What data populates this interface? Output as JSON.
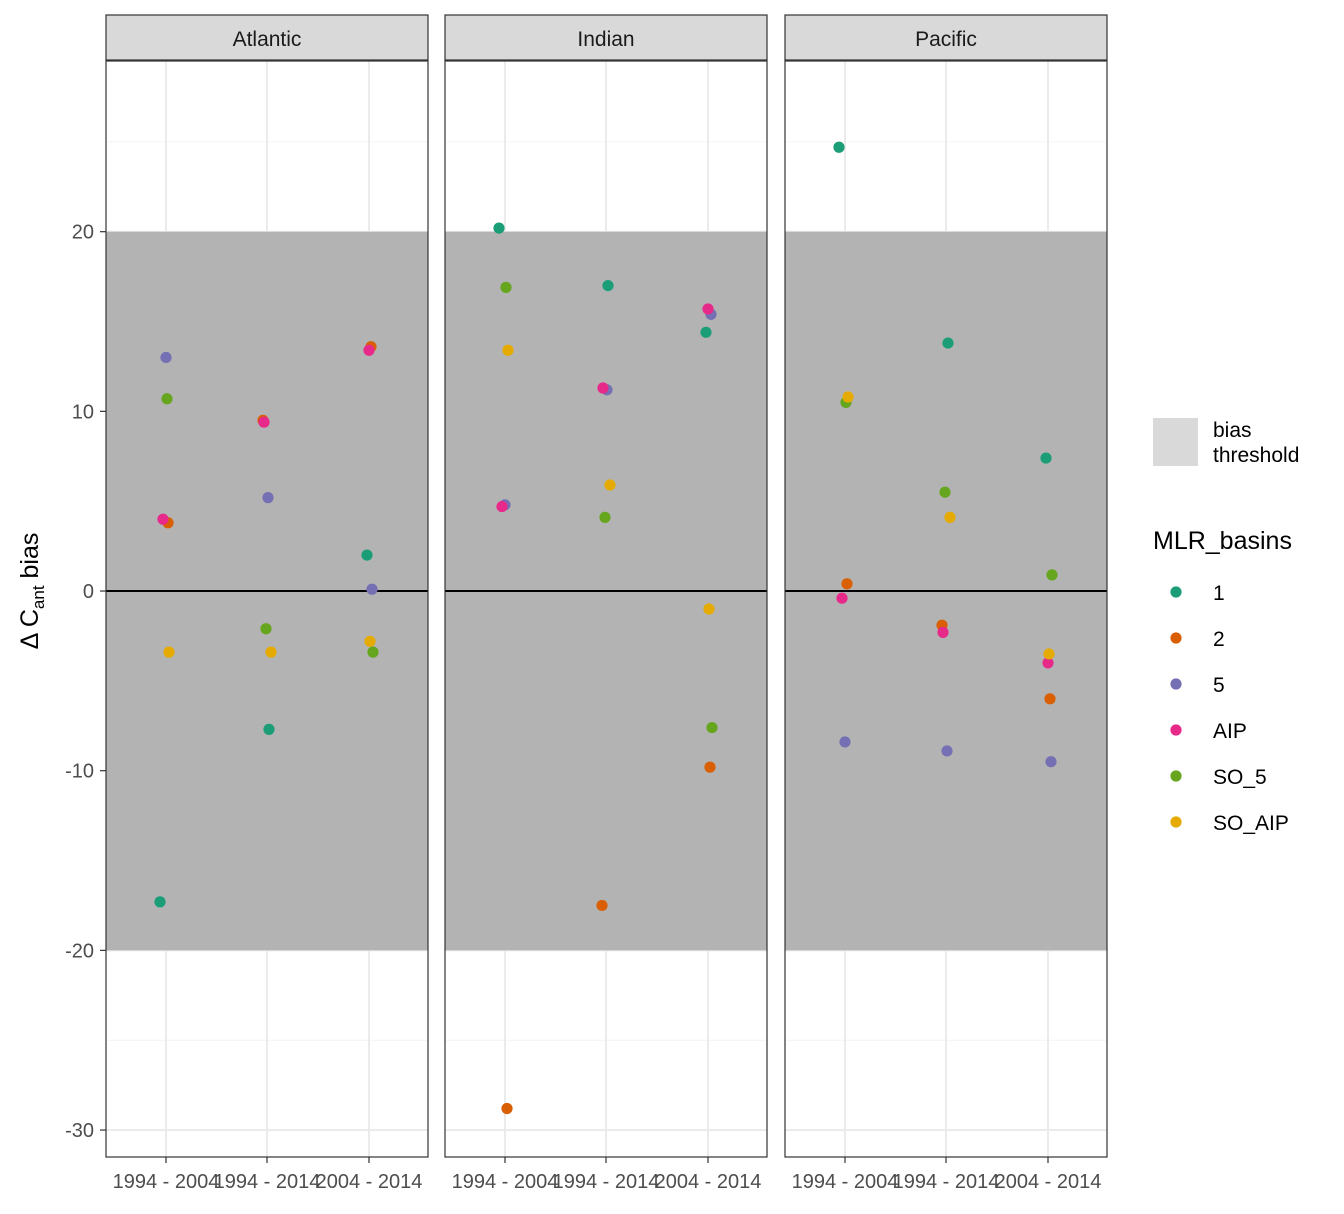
{
  "chart_data": {
    "type": "scatter",
    "facets": [
      "Atlantic",
      "Indian",
      "Pacific"
    ],
    "categories": [
      "1994 - 2004",
      "1994 - 2014",
      "2004 - 2014"
    ],
    "ylabel": {
      "main": "Δ C",
      "sub": "ant",
      "suffix": " bias"
    },
    "ylim": [
      -31.5,
      29.5
    ],
    "yticks": [
      -30,
      -20,
      -10,
      0,
      10,
      20
    ],
    "grid": true,
    "bias_threshold": [
      -20,
      20
    ],
    "zero_line": 0,
    "legend": {
      "fill_label_line1": "bias",
      "fill_label_line2": "threshold",
      "title": "MLR_basins",
      "placement": "right"
    },
    "colors": {
      "1": "#1b9e77",
      "2": "#d95f02",
      "5": "#7570b3",
      "AIP": "#e7298a",
      "SO_5": "#66a61e",
      "SO_AIP": "#e6ab02",
      "threshold_band": "#b3b3b3",
      "legend_fill": "#d9d9d9",
      "strip": "#d9d9d9"
    },
    "series": [
      {
        "name": "1",
        "points": {
          "Atlantic": [
            null,
            -7.7,
            2.0
          ],
          "Indian": [
            20.2,
            17.0,
            14.4
          ],
          "Pacific": [
            24.7,
            13.8,
            7.4
          ]
        },
        "Atlantic_first": -17.3
      },
      {
        "name": "2",
        "points": {
          "Atlantic": [
            3.8,
            9.5,
            13.6
          ],
          "Indian": [
            -28.8,
            -17.5,
            -9.8
          ],
          "Pacific": [
            0.4,
            -1.9,
            -6.0
          ]
        }
      },
      {
        "name": "5",
        "points": {
          "Atlantic": [
            13.0,
            5.2,
            0.1
          ],
          "Indian": [
            4.8,
            11.2,
            15.4
          ],
          "Pacific": [
            -8.4,
            -8.9,
            -9.5
          ]
        }
      },
      {
        "name": "AIP",
        "points": {
          "Atlantic": [
            4.0,
            9.4,
            13.4
          ],
          "Indian": [
            4.7,
            11.3,
            15.7
          ],
          "Pacific": [
            -0.4,
            -2.3,
            -4.0
          ]
        }
      },
      {
        "name": "SO_5",
        "points": {
          "Atlantic": [
            10.7,
            -2.1,
            -3.4
          ],
          "Indian": [
            16.9,
            4.1,
            -7.6
          ],
          "Pacific": [
            10.5,
            5.5,
            0.9
          ]
        }
      },
      {
        "name": "SO_AIP",
        "points": {
          "Atlantic": [
            -3.4,
            -3.4,
            -2.8
          ],
          "Indian": [
            13.4,
            5.9,
            -1.0
          ],
          "Pacific": [
            10.8,
            4.1,
            -3.5
          ]
        }
      }
    ]
  }
}
